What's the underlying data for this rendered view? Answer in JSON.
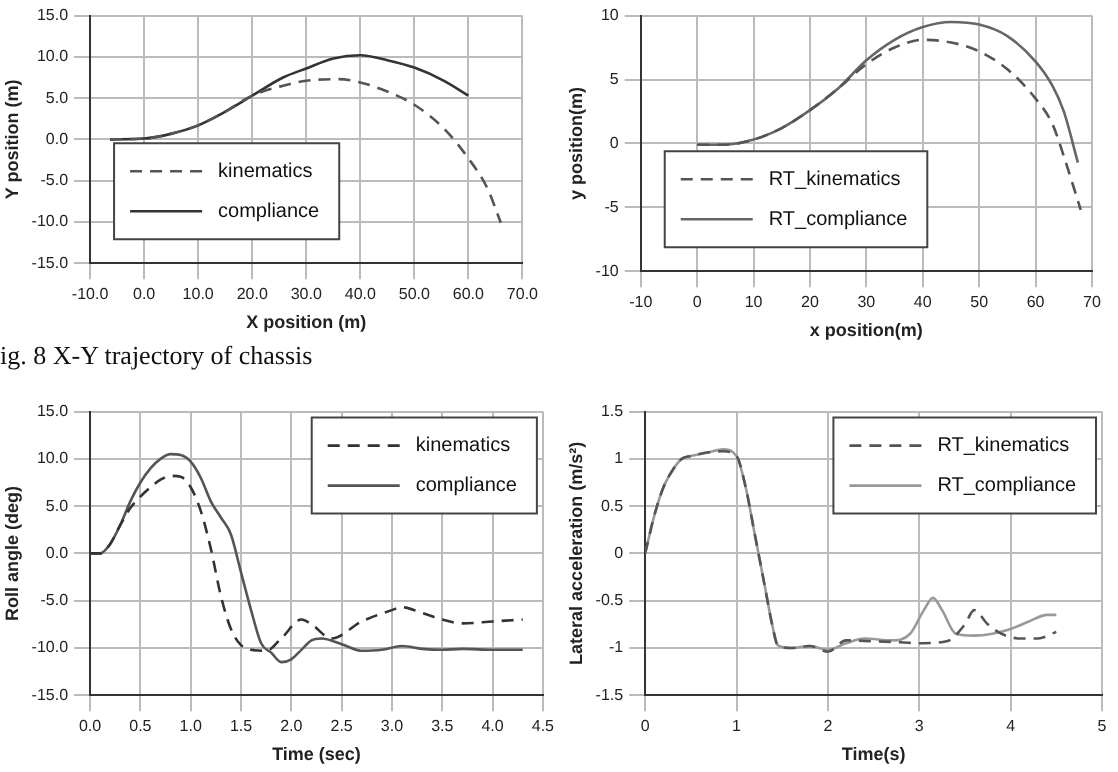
{
  "chart_data": [
    {
      "type": "line",
      "xlabel": "X position (m)",
      "ylabel": "Y position (m)",
      "annotations": [
        "ig. 8  X-Y trajectory of chassis"
      ],
      "xlim": [
        -10,
        70
      ],
      "xticks": [
        {
          "value": -10,
          "label": "-10.0"
        },
        {
          "value": 0,
          "label": "0.0"
        },
        {
          "value": 10,
          "label": "10.0"
        },
        {
          "value": 20,
          "label": "20.0"
        },
        {
          "value": 30,
          "label": "30.0"
        },
        {
          "value": 40,
          "label": "40.0"
        },
        {
          "value": 50,
          "label": "50.0"
        },
        {
          "value": 60,
          "label": "60.0"
        },
        {
          "value": 70,
          "label": "70.0"
        }
      ],
      "ylim": [
        -15,
        15
      ],
      "yticks": [
        {
          "value": -15,
          "label": "-15.0"
        },
        {
          "value": -10,
          "label": "-10.0"
        },
        {
          "value": -5,
          "label": "-5.0"
        },
        {
          "value": 0,
          "label": "0.0"
        },
        {
          "value": 5,
          "label": "5.0"
        },
        {
          "value": 10,
          "label": "10.0"
        },
        {
          "value": 15,
          "label": "15.0"
        }
      ],
      "grid": true,
      "legend": "bottom left",
      "series": [
        {
          "name": "kinematics",
          "color": "#555555",
          "line_style": "dashed",
          "x": [
            -6.3,
            0,
            5.1,
            10,
            14.3,
            20,
            25.7,
            30,
            36,
            40,
            45,
            50,
            55.5,
            60,
            63.5,
            66
          ],
          "values": [
            0,
            0.1,
            0.7,
            1.7,
            3.1,
            5.3,
            6.5,
            7.1,
            7.3,
            6.9,
            5.8,
            4.2,
            1.3,
            -2.3,
            -5.9,
            -10.1
          ]
        },
        {
          "name": "compliance",
          "color": "#333333",
          "line_style": "solid",
          "x": [
            -6.3,
            0,
            5.1,
            10,
            14.3,
            20,
            25.7,
            30,
            35,
            40,
            45,
            50,
            55.5,
            60
          ],
          "values": [
            0,
            0.1,
            0.7,
            1.7,
            3.1,
            5.3,
            7.5,
            8.6,
            9.8,
            10.2,
            9.6,
            8.7,
            7.1,
            5.3
          ]
        }
      ]
    },
    {
      "type": "line",
      "xlabel": "x position(m)",
      "ylabel": "y position(m)",
      "xlim": [
        -10,
        70
      ],
      "xticks": [
        -10,
        0,
        10,
        20,
        30,
        40,
        50,
        60,
        70
      ],
      "ylim": [
        -10,
        10
      ],
      "yticks": [
        -10,
        -5,
        0,
        5,
        10
      ],
      "grid": true,
      "legend": "bottom left",
      "series": [
        {
          "name": "RT_kinematics",
          "color": "#555555",
          "line_style": "dashed",
          "x": [
            0,
            5,
            10,
            15,
            20,
            25,
            30,
            35,
            40,
            45,
            50,
            55,
            60,
            63,
            65,
            68
          ],
          "values": [
            -0.1,
            -0.1,
            0.3,
            1.2,
            2.6,
            4.3,
            6.2,
            7.5,
            8.1,
            7.9,
            7.2,
            5.8,
            3.5,
            1.5,
            -1,
            -5.2
          ]
        },
        {
          "name": "RT_compliance",
          "color": "#666666",
          "line_style": "solid",
          "x": [
            0,
            5,
            10,
            15,
            20,
            25,
            30,
            35,
            40,
            45,
            50,
            55,
            60,
            63,
            65,
            67.5
          ],
          "values": [
            -0.1,
            -0.1,
            0.3,
            1.2,
            2.6,
            4.3,
            6.5,
            8.1,
            9.1,
            9.5,
            9.3,
            8.4,
            6.4,
            4.5,
            2.5,
            -1.5
          ]
        }
      ]
    },
    {
      "type": "line",
      "xlabel": "Time (sec)",
      "ylabel": "Roll angle (deg)",
      "xlim": [
        0,
        4.5
      ],
      "xticks": [
        {
          "value": 0,
          "label": "0.0"
        },
        {
          "value": 0.5,
          "label": "0.5"
        },
        {
          "value": 1,
          "label": "1.0"
        },
        {
          "value": 1.5,
          "label": "1.5"
        },
        {
          "value": 2,
          "label": "2.0"
        },
        {
          "value": 2.5,
          "label": "2.5"
        },
        {
          "value": 3,
          "label": "3.0"
        },
        {
          "value": 3.5,
          "label": "3.5"
        },
        {
          "value": 4,
          "label": "4.0"
        },
        {
          "value": 4.5,
          "label": "4.5"
        }
      ],
      "ylim": [
        -15,
        15
      ],
      "yticks": [
        {
          "value": -15,
          "label": "-15.0"
        },
        {
          "value": -10,
          "label": "-10.0"
        },
        {
          "value": -5,
          "label": "-5.0"
        },
        {
          "value": 0,
          "label": "0.0"
        },
        {
          "value": 5,
          "label": "5.0"
        },
        {
          "value": 10,
          "label": "10.0"
        },
        {
          "value": 15,
          "label": "15.0"
        }
      ],
      "grid": true,
      "legend": "top right",
      "series": [
        {
          "name": "kinematics",
          "color": "#333333",
          "line_style": "dashed",
          "x": [
            0,
            0.1,
            0.2,
            0.3,
            0.4,
            0.5,
            0.6,
            0.7,
            0.8,
            0.9,
            1.0,
            1.1,
            1.2,
            1.3,
            1.4,
            1.5,
            1.6,
            1.75,
            1.9,
            2.1,
            2.2,
            2.4,
            2.7,
            3.0,
            3.1,
            3.3,
            3.5,
            3.7,
            4.0,
            4.3
          ],
          "values": [
            0,
            0,
            1,
            3,
            4.8,
            6,
            7,
            7.8,
            8.2,
            8.1,
            7,
            4.5,
            0.5,
            -4.5,
            -8,
            -9.7,
            -10.2,
            -10.3,
            -9,
            -7,
            -7.5,
            -9,
            -7.2,
            -6,
            -5.7,
            -6.3,
            -7,
            -7.4,
            -7.2,
            -7
          ]
        },
        {
          "name": "compliance",
          "color": "#555555",
          "line_style": "solid",
          "x": [
            0,
            0.1,
            0.2,
            0.3,
            0.4,
            0.5,
            0.6,
            0.7,
            0.8,
            0.9,
            1.0,
            1.1,
            1.2,
            1.3,
            1.4,
            1.5,
            1.6,
            1.7,
            1.8,
            1.9,
            2.0,
            2.1,
            2.2,
            2.3,
            2.5,
            2.7,
            2.9,
            3.1,
            3.3,
            3.5,
            3.7,
            4.0,
            4.3
          ],
          "values": [
            0,
            0,
            1,
            3,
            5.5,
            7.5,
            9,
            10,
            10.5,
            10.4,
            9.7,
            8,
            5.5,
            3.8,
            2,
            -2,
            -6,
            -9.5,
            -10.5,
            -11.5,
            -11.2,
            -10.2,
            -9.2,
            -9,
            -9.6,
            -10.3,
            -10.2,
            -9.8,
            -10.1,
            -10.2,
            -10.1,
            -10.2,
            -10.2
          ]
        }
      ]
    },
    {
      "type": "line",
      "xlabel": "Time(s)",
      "ylabel": "Lateral acceleration (m/s²)",
      "xlim": [
        0,
        5
      ],
      "xticks": [
        0,
        1,
        2,
        3,
        4,
        5
      ],
      "ylim": [
        -1.5,
        1.5
      ],
      "yticks": [
        -1.5,
        -1,
        -0.5,
        0,
        0.5,
        1,
        1.5
      ],
      "grid": true,
      "legend": "top right",
      "series": [
        {
          "name": "RT_kinematics",
          "color": "#555555",
          "line_style": "dashed",
          "x": [
            0,
            0.1,
            0.2,
            0.3,
            0.4,
            0.5,
            0.7,
            0.85,
            1.0,
            1.1,
            1.2,
            1.3,
            1.4,
            1.45,
            1.6,
            1.8,
            2.0,
            2.2,
            2.5,
            2.8,
            3.0,
            3.3,
            3.5,
            3.6,
            3.75,
            3.9,
            4.1,
            4.3,
            4.5
          ],
          "values": [
            0,
            0.4,
            0.7,
            0.88,
            1.0,
            1.03,
            1.07,
            1.08,
            1.03,
            0.7,
            0.2,
            -0.3,
            -0.8,
            -0.97,
            -1.0,
            -0.98,
            -1.04,
            -0.92,
            -0.93,
            -0.94,
            -0.95,
            -0.93,
            -0.75,
            -0.6,
            -0.75,
            -0.85,
            -0.9,
            -0.9,
            -0.83
          ]
        },
        {
          "name": "RT_compliance",
          "color": "#999999",
          "line_style": "solid",
          "x": [
            0,
            0.1,
            0.2,
            0.3,
            0.4,
            0.5,
            0.7,
            0.85,
            1.0,
            1.1,
            1.2,
            1.3,
            1.4,
            1.45,
            1.6,
            1.8,
            2.0,
            2.2,
            2.4,
            2.7,
            2.9,
            3.05,
            3.15,
            3.25,
            3.4,
            3.6,
            3.8,
            4.0,
            4.2,
            4.4,
            4.5
          ],
          "values": [
            0,
            0.4,
            0.7,
            0.88,
            1.0,
            1.03,
            1.07,
            1.1,
            1.03,
            0.7,
            0.2,
            -0.3,
            -0.8,
            -0.97,
            -1.0,
            -0.98,
            -1.02,
            -0.95,
            -0.9,
            -0.92,
            -0.85,
            -0.6,
            -0.47,
            -0.6,
            -0.85,
            -0.87,
            -0.85,
            -0.8,
            -0.72,
            -0.65,
            -0.65
          ]
        }
      ]
    }
  ]
}
